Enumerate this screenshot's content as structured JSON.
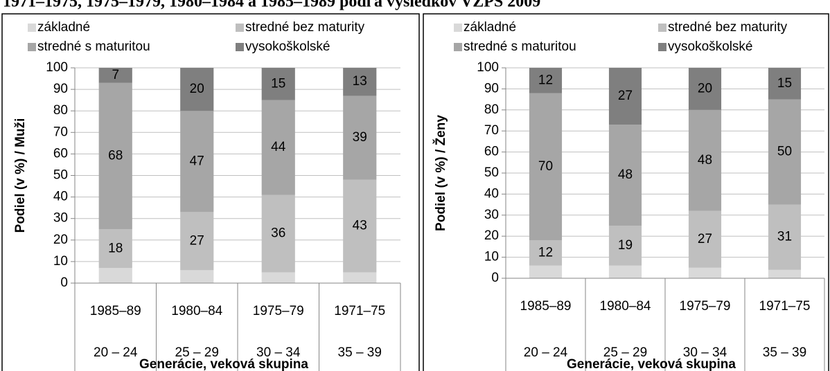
{
  "title": "1971–1975, 1975–1979, 1980–1984 a 1985–1989 podľa výsledkov VZPS 2009",
  "chart_data": [
    {
      "type": "bar",
      "stacked": true,
      "y_label": "Podiel (v %) / Muži",
      "x_label": "Generácie, veková skupina",
      "categories": [
        "1985–89",
        "1980–84",
        "1975–79",
        "1971–75"
      ],
      "age_groups": [
        "20 – 24",
        "25 – 29",
        "30 – 34",
        "35 – 39"
      ],
      "ylim": [
        0,
        100
      ],
      "yticks": [
        0,
        10,
        20,
        30,
        40,
        50,
        60,
        70,
        80,
        90,
        100
      ],
      "grid": true,
      "series": [
        {
          "name": "základné",
          "color": "#d9d9d9",
          "data_labels": false,
          "values": [
            7,
            6,
            5,
            5
          ]
        },
        {
          "name": "stredné bez maturity",
          "color": "#bfbfbf",
          "data_labels": true,
          "label_color": "#262626",
          "values": [
            18,
            27,
            36,
            43
          ]
        },
        {
          "name": "stredné s maturitou",
          "color": "#a6a6a6",
          "data_labels": true,
          "label_color": "#ffffff",
          "values": [
            68,
            47,
            44,
            39
          ]
        },
        {
          "name": "vysokoškolské",
          "color": "#7f7f7f",
          "data_labels": true,
          "label_color": "#ffffff",
          "values": [
            7,
            20,
            15,
            13
          ]
        }
      ]
    },
    {
      "type": "bar",
      "stacked": true,
      "y_label": "Podiel (v %) / Ženy",
      "x_label": "Generácie, veková skupina",
      "categories": [
        "1985–89",
        "1980–84",
        "1975–79",
        "1971–75"
      ],
      "age_groups": [
        "20 – 24",
        "25 – 29",
        "30 – 34",
        "35 – 39"
      ],
      "ylim": [
        0,
        100
      ],
      "yticks": [
        0,
        10,
        20,
        30,
        40,
        50,
        60,
        70,
        80,
        90,
        100
      ],
      "grid": true,
      "series": [
        {
          "name": "základné",
          "color": "#d9d9d9",
          "data_labels": false,
          "values": [
            6,
            6,
            5,
            4
          ]
        },
        {
          "name": "stredné bez maturity",
          "color": "#bfbfbf",
          "data_labels": true,
          "label_color": "#262626",
          "values": [
            12,
            19,
            27,
            31
          ]
        },
        {
          "name": "stredné s maturitou",
          "color": "#a6a6a6",
          "data_labels": true,
          "label_color": "#ffffff",
          "values": [
            70,
            48,
            48,
            50
          ]
        },
        {
          "name": "vysokoškolské",
          "color": "#7f7f7f",
          "data_labels": true,
          "label_color": "#ffffff",
          "values": [
            12,
            27,
            20,
            15
          ]
        }
      ]
    }
  ]
}
